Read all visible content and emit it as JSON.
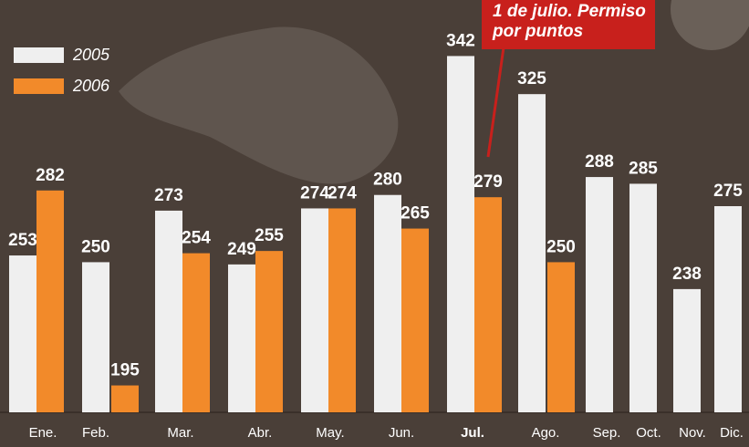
{
  "chart_data": {
    "type": "bar",
    "categories": [
      "Ene.",
      "Feb.",
      "Mar.",
      "Abr.",
      "May.",
      "Jun.",
      "Jul.",
      "Ago.",
      "Sep.",
      "Oct.",
      "Nov.",
      "Dic."
    ],
    "series": [
      {
        "name": "2005",
        "color": "#efefef",
        "values": [
          253,
          250,
          273,
          249,
          274,
          280,
          342,
          325,
          288,
          285,
          238,
          275
        ]
      },
      {
        "name": "2006",
        "color": "#f28a2a",
        "values": [
          282,
          195,
          254,
          255,
          274,
          265,
          279,
          250,
          null,
          null,
          null,
          null
        ]
      }
    ],
    "ylim": [
      183,
      367
    ],
    "annotation": "1 de julio. Permiso por puntos"
  }
}
